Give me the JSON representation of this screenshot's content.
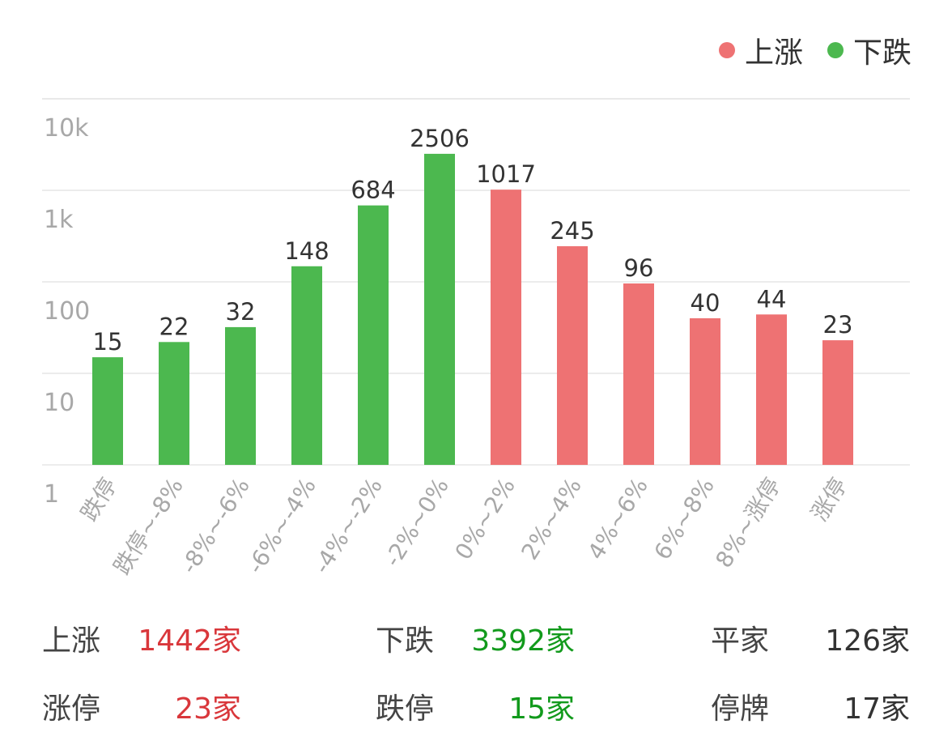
{
  "legend": [
    {
      "label": "上涨",
      "color": "#ee7273"
    },
    {
      "label": "下跌",
      "color": "#4cb84f"
    }
  ],
  "colors": {
    "up": "#ee7273",
    "down": "#4cb84f",
    "grid": "#e6e6e6",
    "axis_text": "#a8a8a8",
    "value_text": "#333333",
    "up_text": "#d9373b",
    "down_text": "#129a1c"
  },
  "chart_data": {
    "type": "bar",
    "yscale": "log",
    "ylim": [
      1,
      10000
    ],
    "yticks": [
      "1",
      "10",
      "100",
      "1k",
      "10k"
    ],
    "categories": [
      "跌停",
      "跌停~-8%",
      "-8%~-6%",
      "-6%~-4%",
      "-4%~-2%",
      "-2%~0%",
      "0%~2%",
      "2%~4%",
      "4%~6%",
      "6%~8%",
      "8%~涨停",
      "涨停"
    ],
    "values": [
      15,
      22,
      32,
      148,
      684,
      2506,
      1017,
      245,
      96,
      40,
      44,
      23
    ],
    "series_index": [
      1,
      1,
      1,
      1,
      1,
      1,
      0,
      0,
      0,
      0,
      0,
      0
    ],
    "legend_position": "top-right",
    "grid": true
  },
  "summary": {
    "rows": [
      [
        {
          "label": "上涨",
          "value": "1442家",
          "tone": "up"
        },
        {
          "label": "下跌",
          "value": "3392家",
          "tone": "down"
        },
        {
          "label": "平家",
          "value": "126家",
          "tone": "neutral"
        }
      ],
      [
        {
          "label": "涨停",
          "value": "23家",
          "tone": "up"
        },
        {
          "label": "跌停",
          "value": "15家",
          "tone": "down"
        },
        {
          "label": "停牌",
          "value": "17家",
          "tone": "neutral"
        }
      ]
    ]
  }
}
